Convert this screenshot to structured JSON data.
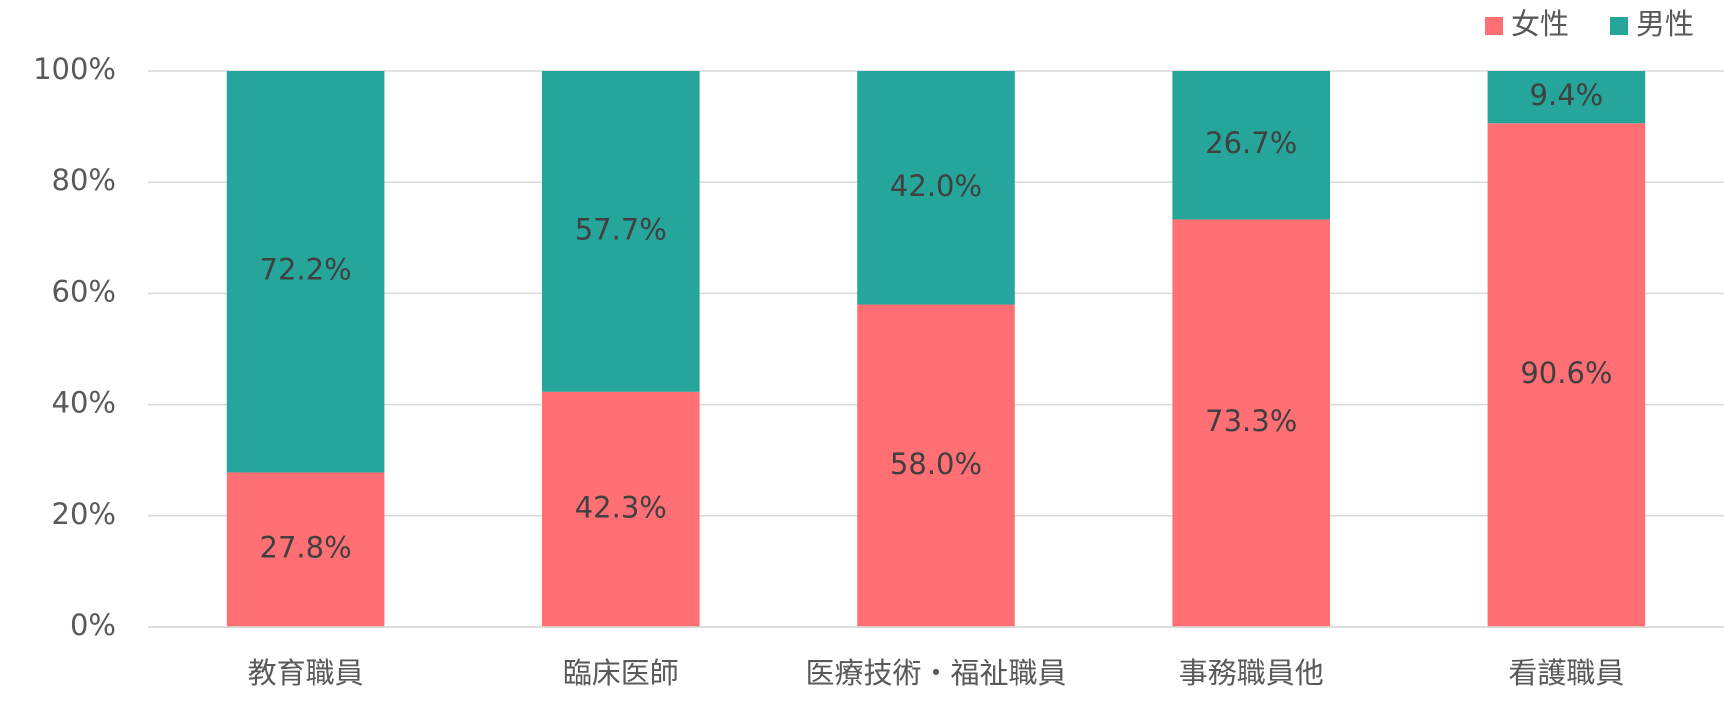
{
  "chart_data": {
    "type": "stacked_bar_100",
    "categories": [
      "教育職員",
      "臨床医師",
      "医療技術・福祉職員",
      "事務職員他",
      "看護職員"
    ],
    "series": [
      {
        "name": "女性",
        "color": "#ff6f73",
        "values": [
          27.8,
          42.3,
          58.0,
          73.3,
          90.6
        ],
        "value_labels": [
          "27.8%",
          "42.3%",
          "58.0%",
          "73.3%",
          "90.6%"
        ]
      },
      {
        "name": "男性",
        "color": "#26a69a",
        "values": [
          72.2,
          57.7,
          42.0,
          26.7,
          9.4
        ],
        "value_labels": [
          "72.2%",
          "57.7%",
          "42.0%",
          "26.7%",
          "9.4%"
        ]
      }
    ],
    "ylim": [
      0,
      100
    ],
    "yticks": [
      {
        "value": 0,
        "label": "0%"
      },
      {
        "value": 20,
        "label": "20%"
      },
      {
        "value": 40,
        "label": "40%"
      },
      {
        "value": 60,
        "label": "60%"
      },
      {
        "value": 80,
        "label": "80%"
      },
      {
        "value": 100,
        "label": "100%"
      }
    ],
    "grid": true,
    "legend": "top-right"
  }
}
